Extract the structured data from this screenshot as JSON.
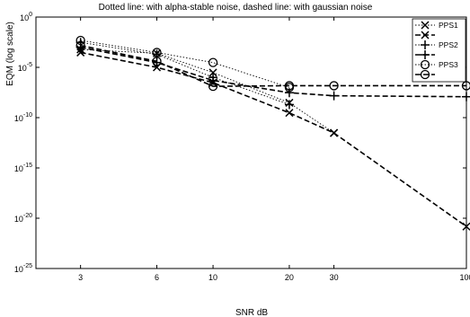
{
  "chart_data": {
    "type": "line",
    "title": "Dotted line: with alpha-stable noise, dashed line: with gaussian noise",
    "xlabel": "SNR dB",
    "ylabel": "EQM (log scale)",
    "x_scale": "log",
    "y_scale": "log",
    "x_ticks": [
      3,
      6,
      10,
      20,
      30,
      100
    ],
    "x_tick_labels": [
      "3",
      "6",
      "10",
      "20",
      "30",
      "100"
    ],
    "xlim": [
      2,
      100
    ],
    "ylim": [
      1e-25,
      1
    ],
    "y_ticks": [
      1e-25,
      1e-20,
      1e-15,
      1e-10,
      1e-05,
      1
    ],
    "y_tick_labels": [
      {
        "base": "10",
        "exp": "-25"
      },
      {
        "base": "10",
        "exp": "-20"
      },
      {
        "base": "10",
        "exp": "-15"
      },
      {
        "base": "10",
        "exp": "-10"
      },
      {
        "base": "10",
        "exp": "-5"
      },
      {
        "base": "10",
        "exp": "0"
      }
    ],
    "grid": false,
    "legend_position": "top-right",
    "series": [
      {
        "name": "PPS1",
        "noise": "alpha-stable",
        "line": "dotted",
        "marker": "x",
        "x": [
          3,
          6,
          10,
          20,
          30
        ],
        "y": [
          0.0006,
          0.00025,
          3e-06,
          3e-09,
          3e-12
        ]
      },
      {
        "name": "",
        "noise": "gaussian",
        "line": "dashed",
        "marker": "x",
        "x": [
          3,
          6,
          10,
          20,
          30,
          100
        ],
        "y": [
          0.0003,
          1e-05,
          3e-07,
          3e-10,
          3e-12,
          1.5e-21
        ]
      },
      {
        "name": "PPS2",
        "noise": "alpha-stable",
        "line": "dotted",
        "marker": "+",
        "x": [
          3,
          6,
          10,
          20
        ],
        "y": [
          0.003,
          0.0002,
          1e-06,
          2e-09
        ]
      },
      {
        "name": "",
        "noise": "gaussian",
        "line": "dashed",
        "marker": "+",
        "x": [
          3,
          6,
          10,
          20,
          30,
          100
        ],
        "y": [
          0.001,
          3e-05,
          5e-07,
          3e-08,
          1.5e-08,
          1.2e-08
        ]
      },
      {
        "name": "PPS3",
        "noise": "alpha-stable",
        "line": "dotted",
        "marker": "o",
        "x": [
          3,
          6,
          10,
          20
        ],
        "y": [
          0.0048,
          0.0003,
          3e-05,
          1e-07
        ]
      },
      {
        "name": "",
        "noise": "gaussian",
        "line": "dashed",
        "marker": "o",
        "x": [
          3,
          6,
          10,
          20,
          30,
          100
        ],
        "y": [
          0.0015,
          4e-05,
          1.3e-07,
          1.5e-07,
          1.5e-07,
          1.5e-07
        ]
      }
    ]
  }
}
